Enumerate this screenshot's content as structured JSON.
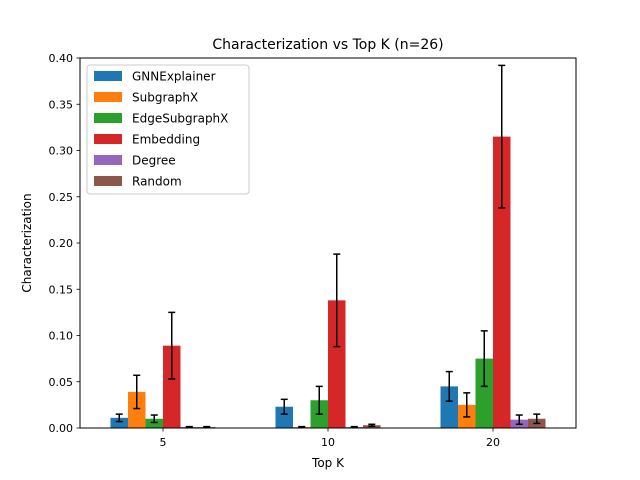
{
  "chart_data": {
    "type": "bar",
    "title": "Characterization vs Top K (n=26)",
    "xlabel": "Top K",
    "ylabel": "Characterization",
    "categories": [
      "5",
      "10",
      "20"
    ],
    "ylim": [
      0,
      0.4
    ],
    "yticks": [
      "0.00",
      "0.05",
      "0.10",
      "0.15",
      "0.20",
      "0.25",
      "0.30",
      "0.35",
      "0.40"
    ],
    "grid": false,
    "legend_position": "top-left",
    "series": [
      {
        "name": "GNNExplainer",
        "color": "#1f77b4",
        "values": [
          0.011,
          0.023,
          0.045
        ],
        "errors": [
          0.004,
          0.008,
          0.016
        ]
      },
      {
        "name": "SubgraphX",
        "color": "#ff7f0e",
        "values": [
          0.039,
          0.001,
          0.025
        ],
        "errors": [
          0.018,
          0.0005,
          0.013
        ]
      },
      {
        "name": "EdgeSubgraphX",
        "color": "#2ca02c",
        "values": [
          0.01,
          0.03,
          0.075
        ],
        "errors": [
          0.004,
          0.015,
          0.03
        ]
      },
      {
        "name": "Embedding",
        "color": "#d62728",
        "values": [
          0.089,
          0.138,
          0.315
        ],
        "errors": [
          0.036,
          0.05,
          0.077
        ]
      },
      {
        "name": "Degree",
        "color": "#9467bd",
        "values": [
          0.001,
          0.001,
          0.009
        ],
        "errors": [
          0.0005,
          0.0005,
          0.005
        ]
      },
      {
        "name": "Random",
        "color": "#8c564b",
        "values": [
          0.001,
          0.003,
          0.01
        ],
        "errors": [
          0.0005,
          0.001,
          0.005
        ]
      }
    ]
  }
}
